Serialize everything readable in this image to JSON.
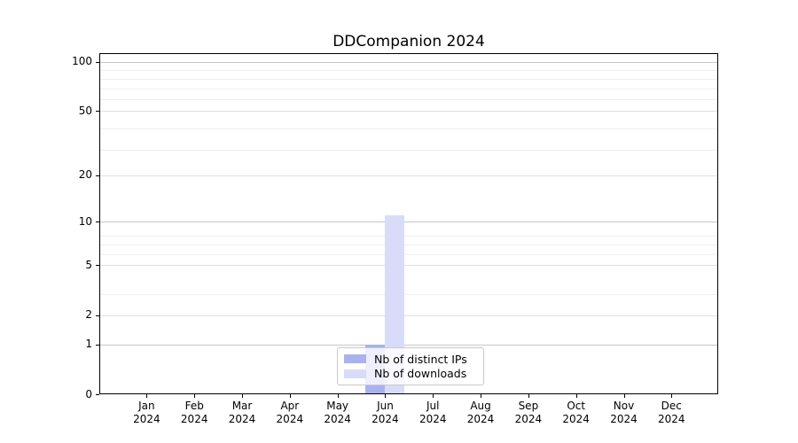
{
  "figure": {
    "title": "DDCompanion 2024"
  },
  "chart_data": {
    "type": "bar",
    "title": "DDCompanion 2024",
    "xlabel": "",
    "ylabel": "",
    "x_tick_labels": [
      [
        "Jan",
        "2024"
      ],
      [
        "Feb",
        "2024"
      ],
      [
        "Mar",
        "2024"
      ],
      [
        "Apr",
        "2024"
      ],
      [
        "May",
        "2024"
      ],
      [
        "Jun",
        "2024"
      ],
      [
        "Jul",
        "2024"
      ],
      [
        "Aug",
        "2024"
      ],
      [
        "Sep",
        "2024"
      ],
      [
        "Oct",
        "2024"
      ],
      [
        "Nov",
        "2024"
      ],
      [
        "Dec",
        "2024"
      ]
    ],
    "y_tick_values": [
      0,
      1,
      2,
      5,
      10,
      20,
      50,
      100
    ],
    "y_tick_labels": [
      "0",
      "1",
      "2",
      "5",
      "10",
      "20",
      "50",
      "100"
    ],
    "y_scale": "log-like",
    "ylim": [
      0,
      113
    ],
    "grid": "horizontal major and minor gridlines",
    "legend": {
      "position": "lower center",
      "items": [
        "Nb of distinct IPs",
        "Nb of downloads"
      ]
    },
    "series": [
      {
        "name": "Nb of distinct IPs",
        "color": "#a9b1ee",
        "values": [
          0,
          0,
          0,
          0,
          0,
          1,
          0,
          0,
          0,
          0,
          0,
          0
        ]
      },
      {
        "name": "Nb of downloads",
        "color": "#d9dcf8",
        "values": [
          0,
          0,
          0,
          0,
          0,
          11,
          0,
          0,
          0,
          0,
          0,
          0
        ]
      }
    ],
    "colors": {
      "grid_major": "#c6c6c6",
      "grid_mid": "#e0e0e0",
      "grid_minor": "#eeeeee",
      "axis": "#000000"
    }
  }
}
